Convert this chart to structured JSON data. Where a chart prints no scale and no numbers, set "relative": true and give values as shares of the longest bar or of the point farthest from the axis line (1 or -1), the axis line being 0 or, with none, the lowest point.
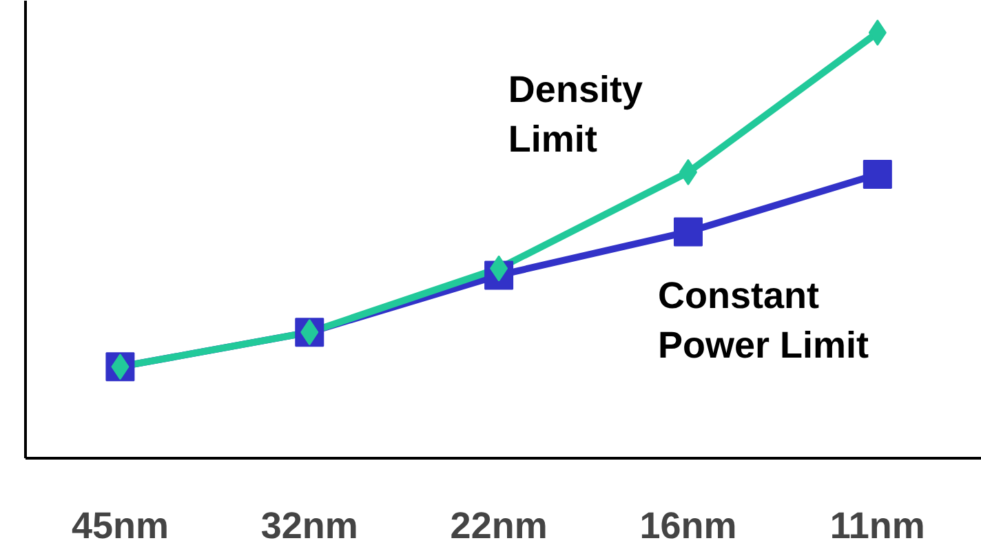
{
  "chart_data": {
    "type": "line",
    "relative": true,
    "categories": [
      "45nm",
      "32nm",
      "22nm",
      "16nm",
      "11nm"
    ],
    "series": [
      {
        "name": "Density\nLimit",
        "color": "#22c99a",
        "marker": "diamond",
        "values": [
          0.215,
          0.296,
          0.446,
          0.672,
          1
        ]
      },
      {
        "name": "Constant\nPower Limit",
        "color": "#3232c8",
        "marker": "square",
        "values": [
          0.215,
          0.296,
          0.43,
          0.532,
          0.667
        ]
      }
    ],
    "legend": false,
    "grid": false,
    "line_style": "solid"
  }
}
